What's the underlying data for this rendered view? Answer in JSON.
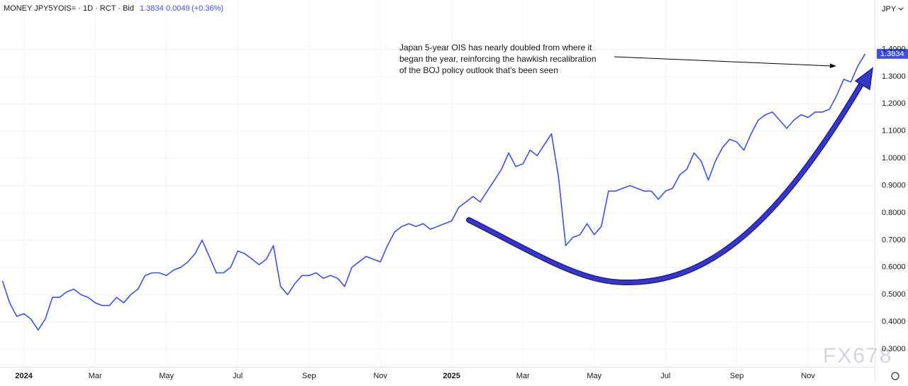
{
  "header": {
    "symbol": "MONEY JPY5YOIS= · 1D · RCT · Bid",
    "change": 0.0049,
    "change_percent": "(+0.36%)",
    "currency": "JPY"
  },
  "watermark": "FX678",
  "chart_data": {
    "type": "line",
    "annotation": [
      "Japan 5-year OIS has nearly doubled from where it",
      "began the year, reinforcing the hawkish recalibration",
      "of the BOJ policy outlook that's been seen"
    ],
    "categories": [
      null,
      null,
      null,
      "2024",
      null,
      null,
      null,
      null,
      null,
      null,
      null,
      null,
      null,
      "Mar",
      null,
      null,
      null,
      null,
      null,
      null,
      null,
      null,
      null,
      "May",
      null,
      null,
      null,
      null,
      null,
      null,
      null,
      null,
      null,
      "Jul",
      null,
      null,
      null,
      null,
      null,
      null,
      null,
      null,
      null,
      "Sep",
      null,
      null,
      null,
      null,
      null,
      null,
      null,
      null,
      null,
      "Nov",
      null,
      null,
      null,
      null,
      null,
      null,
      null,
      null,
      null,
      "2025",
      null,
      null,
      null,
      null,
      null,
      null,
      null,
      null,
      null,
      "Mar",
      null,
      null,
      null,
      null,
      null,
      null,
      null,
      null,
      null,
      "May",
      null,
      null,
      null,
      null,
      null,
      null,
      null,
      null,
      null,
      "Jul",
      null,
      null,
      null,
      null,
      null,
      null,
      null,
      null,
      null,
      "Sep",
      null,
      null,
      null,
      null,
      null,
      null,
      null,
      null,
      null,
      "Nov",
      null,
      null,
      null,
      null,
      null,
      null,
      null,
      null
    ],
    "values": [
      0.55,
      0.47,
      0.42,
      0.43,
      0.41,
      0.37,
      0.41,
      0.49,
      0.49,
      0.51,
      0.52,
      0.5,
      0.49,
      0.47,
      0.46,
      0.46,
      0.49,
      0.47,
      0.5,
      0.52,
      0.57,
      0.58,
      0.58,
      0.57,
      0.59,
      0.6,
      0.62,
      0.65,
      0.7,
      0.64,
      0.58,
      0.58,
      0.6,
      0.66,
      0.65,
      0.63,
      0.61,
      0.63,
      0.68,
      0.53,
      0.5,
      0.54,
      0.57,
      0.57,
      0.58,
      0.56,
      0.57,
      0.56,
      0.53,
      0.6,
      0.62,
      0.64,
      0.63,
      0.62,
      0.68,
      0.73,
      0.75,
      0.76,
      0.75,
      0.76,
      0.74,
      0.75,
      0.76,
      0.77,
      0.82,
      0.84,
      0.86,
      0.84,
      0.88,
      0.92,
      0.96,
      1.02,
      0.97,
      0.98,
      1.03,
      1.01,
      1.05,
      1.09,
      0.93,
      0.68,
      0.71,
      0.72,
      0.76,
      0.72,
      0.75,
      0.88,
      0.88,
      0.89,
      0.9,
      0.89,
      0.88,
      0.88,
      0.85,
      0.88,
      0.89,
      0.94,
      0.96,
      1.02,
      0.99,
      0.92,
      0.99,
      1.04,
      1.07,
      1.06,
      1.03,
      1.09,
      1.14,
      1.16,
      1.17,
      1.14,
      1.11,
      1.14,
      1.16,
      1.15,
      1.17,
      1.17,
      1.18,
      1.23,
      1.29,
      1.28,
      1.34,
      1.3834
    ],
    "color": "#3d50e6",
    "ylim": [
      0.235,
      1.581
    ],
    "yticks": [
      {
        "value": 0.3,
        "label": "0.3000"
      },
      {
        "value": 0.4,
        "label": "0.4000"
      },
      {
        "value": 0.5,
        "label": "0.5000"
      },
      {
        "value": 0.6,
        "label": "0.6000"
      },
      {
        "value": 0.7,
        "label": "0.7000"
      },
      {
        "value": 0.8,
        "label": "0.8000"
      },
      {
        "value": 0.9,
        "label": "0.9000"
      },
      {
        "value": 1.0,
        "label": "1.0000"
      },
      {
        "value": 1.1,
        "label": "1.1000"
      },
      {
        "value": 1.2,
        "label": "1.2000"
      },
      {
        "value": 1.3,
        "label": "1.3000"
      },
      {
        "value": 1.4,
        "label": "1.4000"
      }
    ],
    "grid": true
  }
}
